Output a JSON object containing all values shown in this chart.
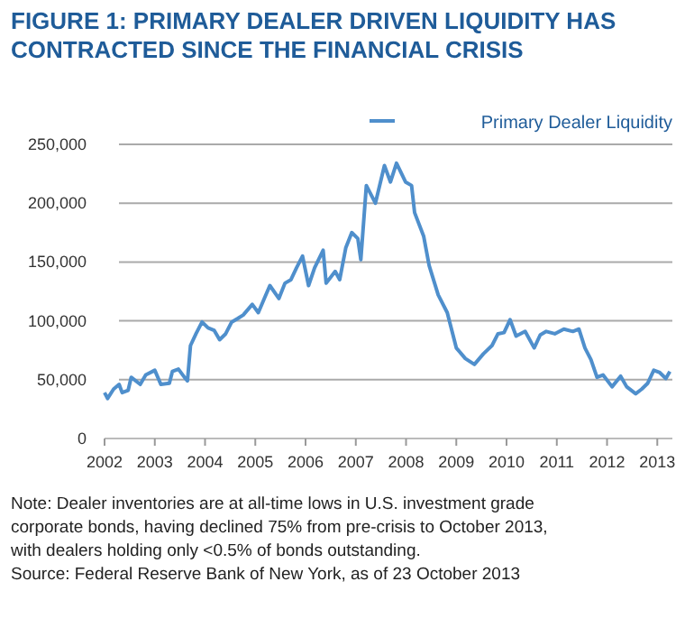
{
  "chart_data": {
    "type": "line",
    "title": "FIGURE 1: PRIMARY DEALER DRIVEN LIQUIDITY HAS CONTRACTED SINCE THE FINANCIAL CRISIS",
    "x": [
      2002.0,
      2002.06,
      2002.18,
      2002.29,
      2002.35,
      2002.47,
      2002.53,
      2002.71,
      2002.82,
      2003.0,
      2003.12,
      2003.29,
      2003.35,
      2003.47,
      2003.59,
      2003.65,
      2003.71,
      2003.82,
      2003.94,
      2004.06,
      2004.18,
      2004.29,
      2004.41,
      2004.53,
      2004.65,
      2004.76,
      2004.94,
      2005.06,
      2005.18,
      2005.29,
      2005.47,
      2005.59,
      2005.71,
      2005.82,
      2005.94,
      2006.06,
      2006.18,
      2006.35,
      2006.41,
      2006.59,
      2006.68,
      2006.8,
      2006.92,
      2007.04,
      2007.1,
      2007.21,
      2007.39,
      2007.57,
      2007.69,
      2007.81,
      2007.99,
      2008.11,
      2008.17,
      2008.35,
      2008.46,
      2008.64,
      2008.82,
      2009.0,
      2009.18,
      2009.36,
      2009.54,
      2009.71,
      2009.83,
      2009.95,
      2010.07,
      2010.19,
      2010.37,
      2010.55,
      2010.67,
      2010.79,
      2010.96,
      2011.14,
      2011.32,
      2011.44,
      2011.56,
      2011.68,
      2011.8,
      2011.92,
      2012.1,
      2012.27,
      2012.39,
      2012.57,
      2012.69,
      2012.81,
      2012.93,
      2013.05,
      2013.17,
      2013.25
    ],
    "series": [
      {
        "name": "Primary Dealer Liquidity",
        "color": "#4f8fcc",
        "values": [
          39000,
          34000,
          42000,
          46000,
          39000,
          41000,
          52000,
          46000,
          54000,
          58000,
          46000,
          47000,
          57000,
          59000,
          52000,
          49000,
          79000,
          89000,
          99000,
          94000,
          92000,
          84000,
          89000,
          99000,
          102000,
          105000,
          114000,
          107000,
          119000,
          130000,
          119000,
          132000,
          135000,
          145000,
          155000,
          130000,
          145000,
          160000,
          132000,
          142000,
          135000,
          162000,
          175000,
          170000,
          152000,
          215000,
          200000,
          232000,
          218000,
          234000,
          218000,
          215000,
          192000,
          172000,
          147000,
          122000,
          107000,
          77000,
          68000,
          63000,
          72000,
          79000,
          89000,
          90000,
          101000,
          87000,
          91000,
          77000,
          88000,
          91000,
          89000,
          93000,
          91000,
          93000,
          77000,
          67000,
          52000,
          54000,
          44000,
          53000,
          44000,
          38000,
          42000,
          47000,
          58000,
          56000,
          51000,
          57000
        ]
      }
    ],
    "xlim": [
      2002,
      2013.3
    ],
    "xticks": [
      2002,
      2003,
      2004,
      2005,
      2006,
      2007,
      2008,
      2009,
      2010,
      2011,
      2012,
      2013
    ],
    "ylim": [
      0,
      250000
    ],
    "yticks": [
      {
        "value": 0,
        "label": "0"
      },
      {
        "value": 50000,
        "label": "50,000"
      },
      {
        "value": 100000,
        "label": "100,000"
      },
      {
        "value": 150000,
        "label": "150,000"
      },
      {
        "value": 200000,
        "label": "200,000"
      },
      {
        "value": 250000,
        "label": "250,000"
      }
    ],
    "grid": "y",
    "legend": "top right",
    "annotations": [
      "Note: Dealer inventories are at all-time lows in U.S. investment grade corporate bonds, having declined 75% from pre-crisis to October 2013, with dealers holding only <0.5% of bonds outstanding.",
      "Source: Federal Reserve Bank of New York, as of 23 October 2013"
    ]
  }
}
